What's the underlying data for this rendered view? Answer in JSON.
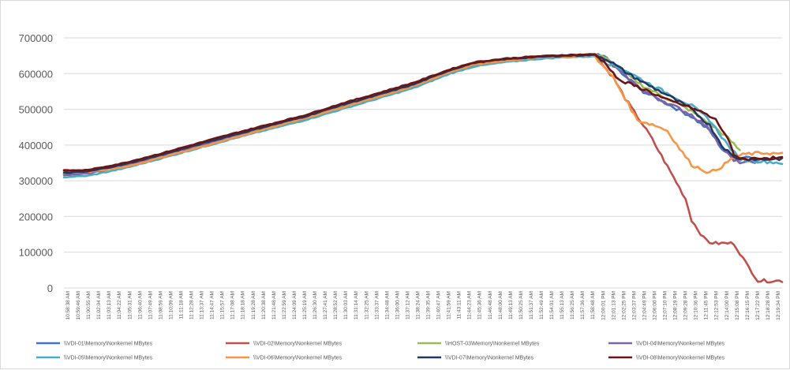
{
  "chart_data": {
    "type": "line",
    "title": "",
    "xlabel": "",
    "ylabel": "",
    "ylim": [
      0,
      700000
    ],
    "yticks": [
      0,
      100000,
      200000,
      300000,
      400000,
      500000,
      600000,
      700000
    ],
    "ytick_labels": [
      "0",
      "100000",
      "200000",
      "300000",
      "400000",
      "500000",
      "600000",
      "700000"
    ],
    "grid": true,
    "legend_position": "bottom",
    "x_tick_labels": [
      "10:58:38 AM",
      "10:59:46 AM",
      "11:00:55 AM",
      "11:02:04 AM",
      "11:03:13 AM",
      "11:04:22 AM",
      "11:05:31 AM",
      "11:06:40 AM",
      "11:07:49 AM",
      "11:08:59 AM",
      "11:10:09 AM",
      "11:11:18 AM",
      "11:12:28 AM",
      "11:13:37 AM",
      "11:14:47 AM",
      "11:15:57 AM",
      "11:17:08 AM",
      "11:18:18 AM",
      "11:19:28 AM",
      "11:20:38 AM",
      "11:21:48 AM",
      "11:22:59 AM",
      "11:24:09 AM",
      "11:25:19 AM",
      "11:26:30 AM",
      "11:27:41 AM",
      "11:28:52 AM",
      "11:30:03 AM",
      "11:31:14 AM",
      "11:32:25 AM",
      "11:33:37 AM",
      "11:34:48 AM",
      "11:36:00 AM",
      "11:37:12 AM",
      "11:38:24 AM",
      "11:39:35 AM",
      "11:40:47 AM",
      "11:41:59 AM",
      "11:43:11 AM",
      "11:44:23 AM",
      "11:45:36 AM",
      "11:46:48 AM",
      "11:48:00 AM",
      "11:49:13 AM",
      "11:50:25 AM",
      "11:51:37 AM",
      "11:52:49 AM",
      "11:54:01 AM",
      "11:55:13 AM",
      "11:56:25 AM",
      "11:57:36 AM",
      "11:58:48 AM",
      "12:00:01 PM",
      "12:01:13 PM",
      "12:02:25 PM",
      "12:03:37 PM",
      "12:04:49 PM",
      "12:06:00 PM",
      "12:07:10 PM",
      "12:08:19 PM",
      "12:09:28 PM",
      "12:10:36 PM",
      "12:11:45 PM",
      "12:12:53 PM",
      "12:14:00 PM",
      "12:15:08 PM",
      "12:16:15 PM",
      "12:17:22 PM",
      "12:18:28 PM",
      "12:19:34 PM"
    ],
    "series": [
      {
        "name": "\\\\VDI-01\\Memory\\Nonkernel MBytes",
        "color": "#4472c4",
        "points": [
          [
            0,
            318000
          ],
          [
            4,
            322000
          ],
          [
            10,
            345000
          ],
          [
            16,
            372000
          ],
          [
            22,
            400000
          ],
          [
            28,
            428000
          ],
          [
            34,
            452000
          ],
          [
            40,
            478000
          ],
          [
            46,
            510000
          ],
          [
            52,
            538000
          ],
          [
            58,
            568000
          ],
          [
            64,
            608000
          ],
          [
            68,
            628000
          ],
          [
            73,
            638000
          ],
          [
            78,
            644000
          ],
          [
            83,
            650000
          ],
          [
            88,
            652000
          ],
          [
            90,
            645000
          ],
          [
            93,
            590000
          ],
          [
            96,
            550000
          ],
          [
            100,
            515000
          ],
          [
            104,
            480000
          ],
          [
            107,
            440000
          ],
          [
            109,
            390000
          ],
          [
            111,
            360000
          ],
          [
            113,
            368000
          ],
          [
            116,
            358000
          ]
        ]
      },
      {
        "name": "\\\\VDI-02\\Memory\\Nonkernel MBytes",
        "color": "#c0504d",
        "points": [
          [
            0,
            330000
          ],
          [
            4,
            330000
          ],
          [
            10,
            348000
          ],
          [
            16,
            374000
          ],
          [
            22,
            400000
          ],
          [
            28,
            426000
          ],
          [
            34,
            452000
          ],
          [
            40,
            480000
          ],
          [
            46,
            510000
          ],
          [
            52,
            540000
          ],
          [
            58,
            570000
          ],
          [
            64,
            608000
          ],
          [
            68,
            628000
          ],
          [
            73,
            638000
          ],
          [
            78,
            644000
          ],
          [
            83,
            650000
          ],
          [
            88,
            650000
          ],
          [
            89,
            630000
          ],
          [
            91,
            590000
          ],
          [
            93,
            530000
          ],
          [
            95,
            480000
          ],
          [
            97,
            430000
          ],
          [
            99,
            370000
          ],
          [
            101,
            310000
          ],
          [
            103,
            250000
          ],
          [
            104,
            190000
          ],
          [
            106,
            140000
          ],
          [
            107,
            128000
          ],
          [
            108,
            125000
          ],
          [
            111,
            125000
          ],
          [
            113,
            70000
          ],
          [
            115,
            20000
          ],
          [
            119,
            20000
          ]
        ]
      },
      {
        "name": "\\\\HOST-03\\Memory\\Nonkernel MBytes",
        "color": "#9bbb59",
        "points": [
          [
            0,
            320000
          ],
          [
            4,
            322000
          ],
          [
            10,
            343000
          ],
          [
            16,
            370000
          ],
          [
            22,
            398000
          ],
          [
            28,
            425000
          ],
          [
            34,
            450000
          ],
          [
            40,
            476000
          ],
          [
            46,
            508000
          ],
          [
            52,
            536000
          ],
          [
            58,
            566000
          ],
          [
            64,
            606000
          ],
          [
            68,
            626000
          ],
          [
            73,
            636000
          ],
          [
            78,
            644000
          ],
          [
            83,
            650000
          ],
          [
            88,
            655000
          ],
          [
            90,
            640000
          ],
          [
            93,
            600000
          ],
          [
            96,
            565000
          ],
          [
            100,
            530000
          ],
          [
            104,
            495000
          ],
          [
            107,
            460000
          ],
          [
            110,
            420000
          ],
          [
            112,
            385000
          ]
        ]
      },
      {
        "name": "\\\\VDI-04\\Memory\\Nonkernel MBytes",
        "color": "#8064a2",
        "points": [
          [
            0,
            316000
          ],
          [
            4,
            320000
          ],
          [
            10,
            342000
          ],
          [
            16,
            368000
          ],
          [
            22,
            396000
          ],
          [
            28,
            424000
          ],
          [
            34,
            448000
          ],
          [
            40,
            474000
          ],
          [
            46,
            506000
          ],
          [
            52,
            534000
          ],
          [
            58,
            564000
          ],
          [
            64,
            604000
          ],
          [
            68,
            624000
          ],
          [
            73,
            634000
          ],
          [
            78,
            642000
          ],
          [
            83,
            648000
          ],
          [
            88,
            650000
          ],
          [
            90,
            635000
          ],
          [
            93,
            595000
          ],
          [
            96,
            552000
          ],
          [
            100,
            518000
          ],
          [
            104,
            485000
          ],
          [
            107,
            445000
          ],
          [
            109,
            395000
          ],
          [
            111,
            355000
          ],
          [
            113,
            350000
          ],
          [
            116,
            358000
          ]
        ]
      },
      {
        "name": "\\\\VDI-05\\Memory\\Nonkernel MBytes",
        "color": "#4bacc6",
        "points": [
          [
            0,
            310000
          ],
          [
            4,
            314000
          ],
          [
            10,
            335000
          ],
          [
            16,
            362000
          ],
          [
            22,
            390000
          ],
          [
            28,
            418000
          ],
          [
            34,
            444000
          ],
          [
            40,
            470000
          ],
          [
            46,
            500000
          ],
          [
            52,
            530000
          ],
          [
            58,
            560000
          ],
          [
            64,
            600000
          ],
          [
            68,
            620000
          ],
          [
            73,
            632000
          ],
          [
            78,
            640000
          ],
          [
            83,
            646000
          ],
          [
            88,
            648000
          ],
          [
            90,
            630000
          ],
          [
            93,
            610000
          ],
          [
            96,
            580000
          ],
          [
            100,
            545000
          ],
          [
            104,
            510000
          ],
          [
            107,
            470000
          ],
          [
            110,
            400000
          ],
          [
            112,
            360000
          ],
          [
            115,
            355000
          ],
          [
            119,
            350000
          ]
        ]
      },
      {
        "name": "\\\\VDI-06\\Memory\\Nonkernel MBytes",
        "color": "#f79646",
        "points": [
          [
            0,
            325000
          ],
          [
            4,
            325000
          ],
          [
            10,
            338000
          ],
          [
            16,
            365000
          ],
          [
            22,
            392000
          ],
          [
            28,
            420000
          ],
          [
            34,
            448000
          ],
          [
            40,
            475000
          ],
          [
            46,
            505000
          ],
          [
            52,
            535000
          ],
          [
            58,
            565000
          ],
          [
            64,
            605000
          ],
          [
            68,
            625000
          ],
          [
            73,
            636000
          ],
          [
            78,
            644000
          ],
          [
            83,
            648000
          ],
          [
            88,
            650000
          ],
          [
            89,
            625000
          ],
          [
            91,
            590000
          ],
          [
            93,
            530000
          ],
          [
            95,
            470000
          ],
          [
            98,
            455000
          ],
          [
            100,
            440000
          ],
          [
            102,
            390000
          ],
          [
            104,
            345000
          ],
          [
            106,
            330000
          ],
          [
            107,
            322000
          ],
          [
            109,
            340000
          ],
          [
            111,
            365000
          ],
          [
            113,
            375000
          ],
          [
            116,
            378000
          ],
          [
            119,
            375000
          ]
        ]
      },
      {
        "name": "\\\\VDI-07\\Memory\\Nonkernel MBytes",
        "color": "#1f3864",
        "points": [
          [
            0,
            322000
          ],
          [
            4,
            326000
          ],
          [
            10,
            346000
          ],
          [
            16,
            372000
          ],
          [
            22,
            400000
          ],
          [
            28,
            428000
          ],
          [
            34,
            454000
          ],
          [
            40,
            480000
          ],
          [
            46,
            512000
          ],
          [
            52,
            540000
          ],
          [
            58,
            570000
          ],
          [
            64,
            610000
          ],
          [
            68,
            630000
          ],
          [
            73,
            640000
          ],
          [
            78,
            646000
          ],
          [
            83,
            650000
          ],
          [
            88,
            652000
          ],
          [
            90,
            640000
          ],
          [
            93,
            605000
          ],
          [
            96,
            575000
          ],
          [
            100,
            540000
          ],
          [
            104,
            500000
          ],
          [
            107,
            455000
          ],
          [
            109,
            400000
          ],
          [
            111,
            365000
          ],
          [
            113,
            362000
          ],
          [
            116,
            360000
          ],
          [
            119,
            362000
          ]
        ]
      },
      {
        "name": "\\\\VDI-08\\Memory\\Nonkernel MBytes",
        "color": "#6b1616",
        "points": [
          [
            0,
            328000
          ],
          [
            4,
            330000
          ],
          [
            10,
            350000
          ],
          [
            16,
            376000
          ],
          [
            22,
            404000
          ],
          [
            28,
            432000
          ],
          [
            34,
            458000
          ],
          [
            40,
            484000
          ],
          [
            46,
            516000
          ],
          [
            52,
            545000
          ],
          [
            58,
            575000
          ],
          [
            64,
            612000
          ],
          [
            68,
            632000
          ],
          [
            73,
            642000
          ],
          [
            78,
            648000
          ],
          [
            83,
            652000
          ],
          [
            88,
            654000
          ],
          [
            90,
            625000
          ],
          [
            92,
            580000
          ],
          [
            94,
            570000
          ],
          [
            97,
            550000
          ],
          [
            100,
            525000
          ],
          [
            103,
            510000
          ],
          [
            106,
            490000
          ],
          [
            108,
            470000
          ],
          [
            110,
            420000
          ],
          [
            111,
            370000
          ],
          [
            113,
            360000
          ],
          [
            116,
            365000
          ],
          [
            119,
            362000
          ]
        ]
      }
    ]
  }
}
